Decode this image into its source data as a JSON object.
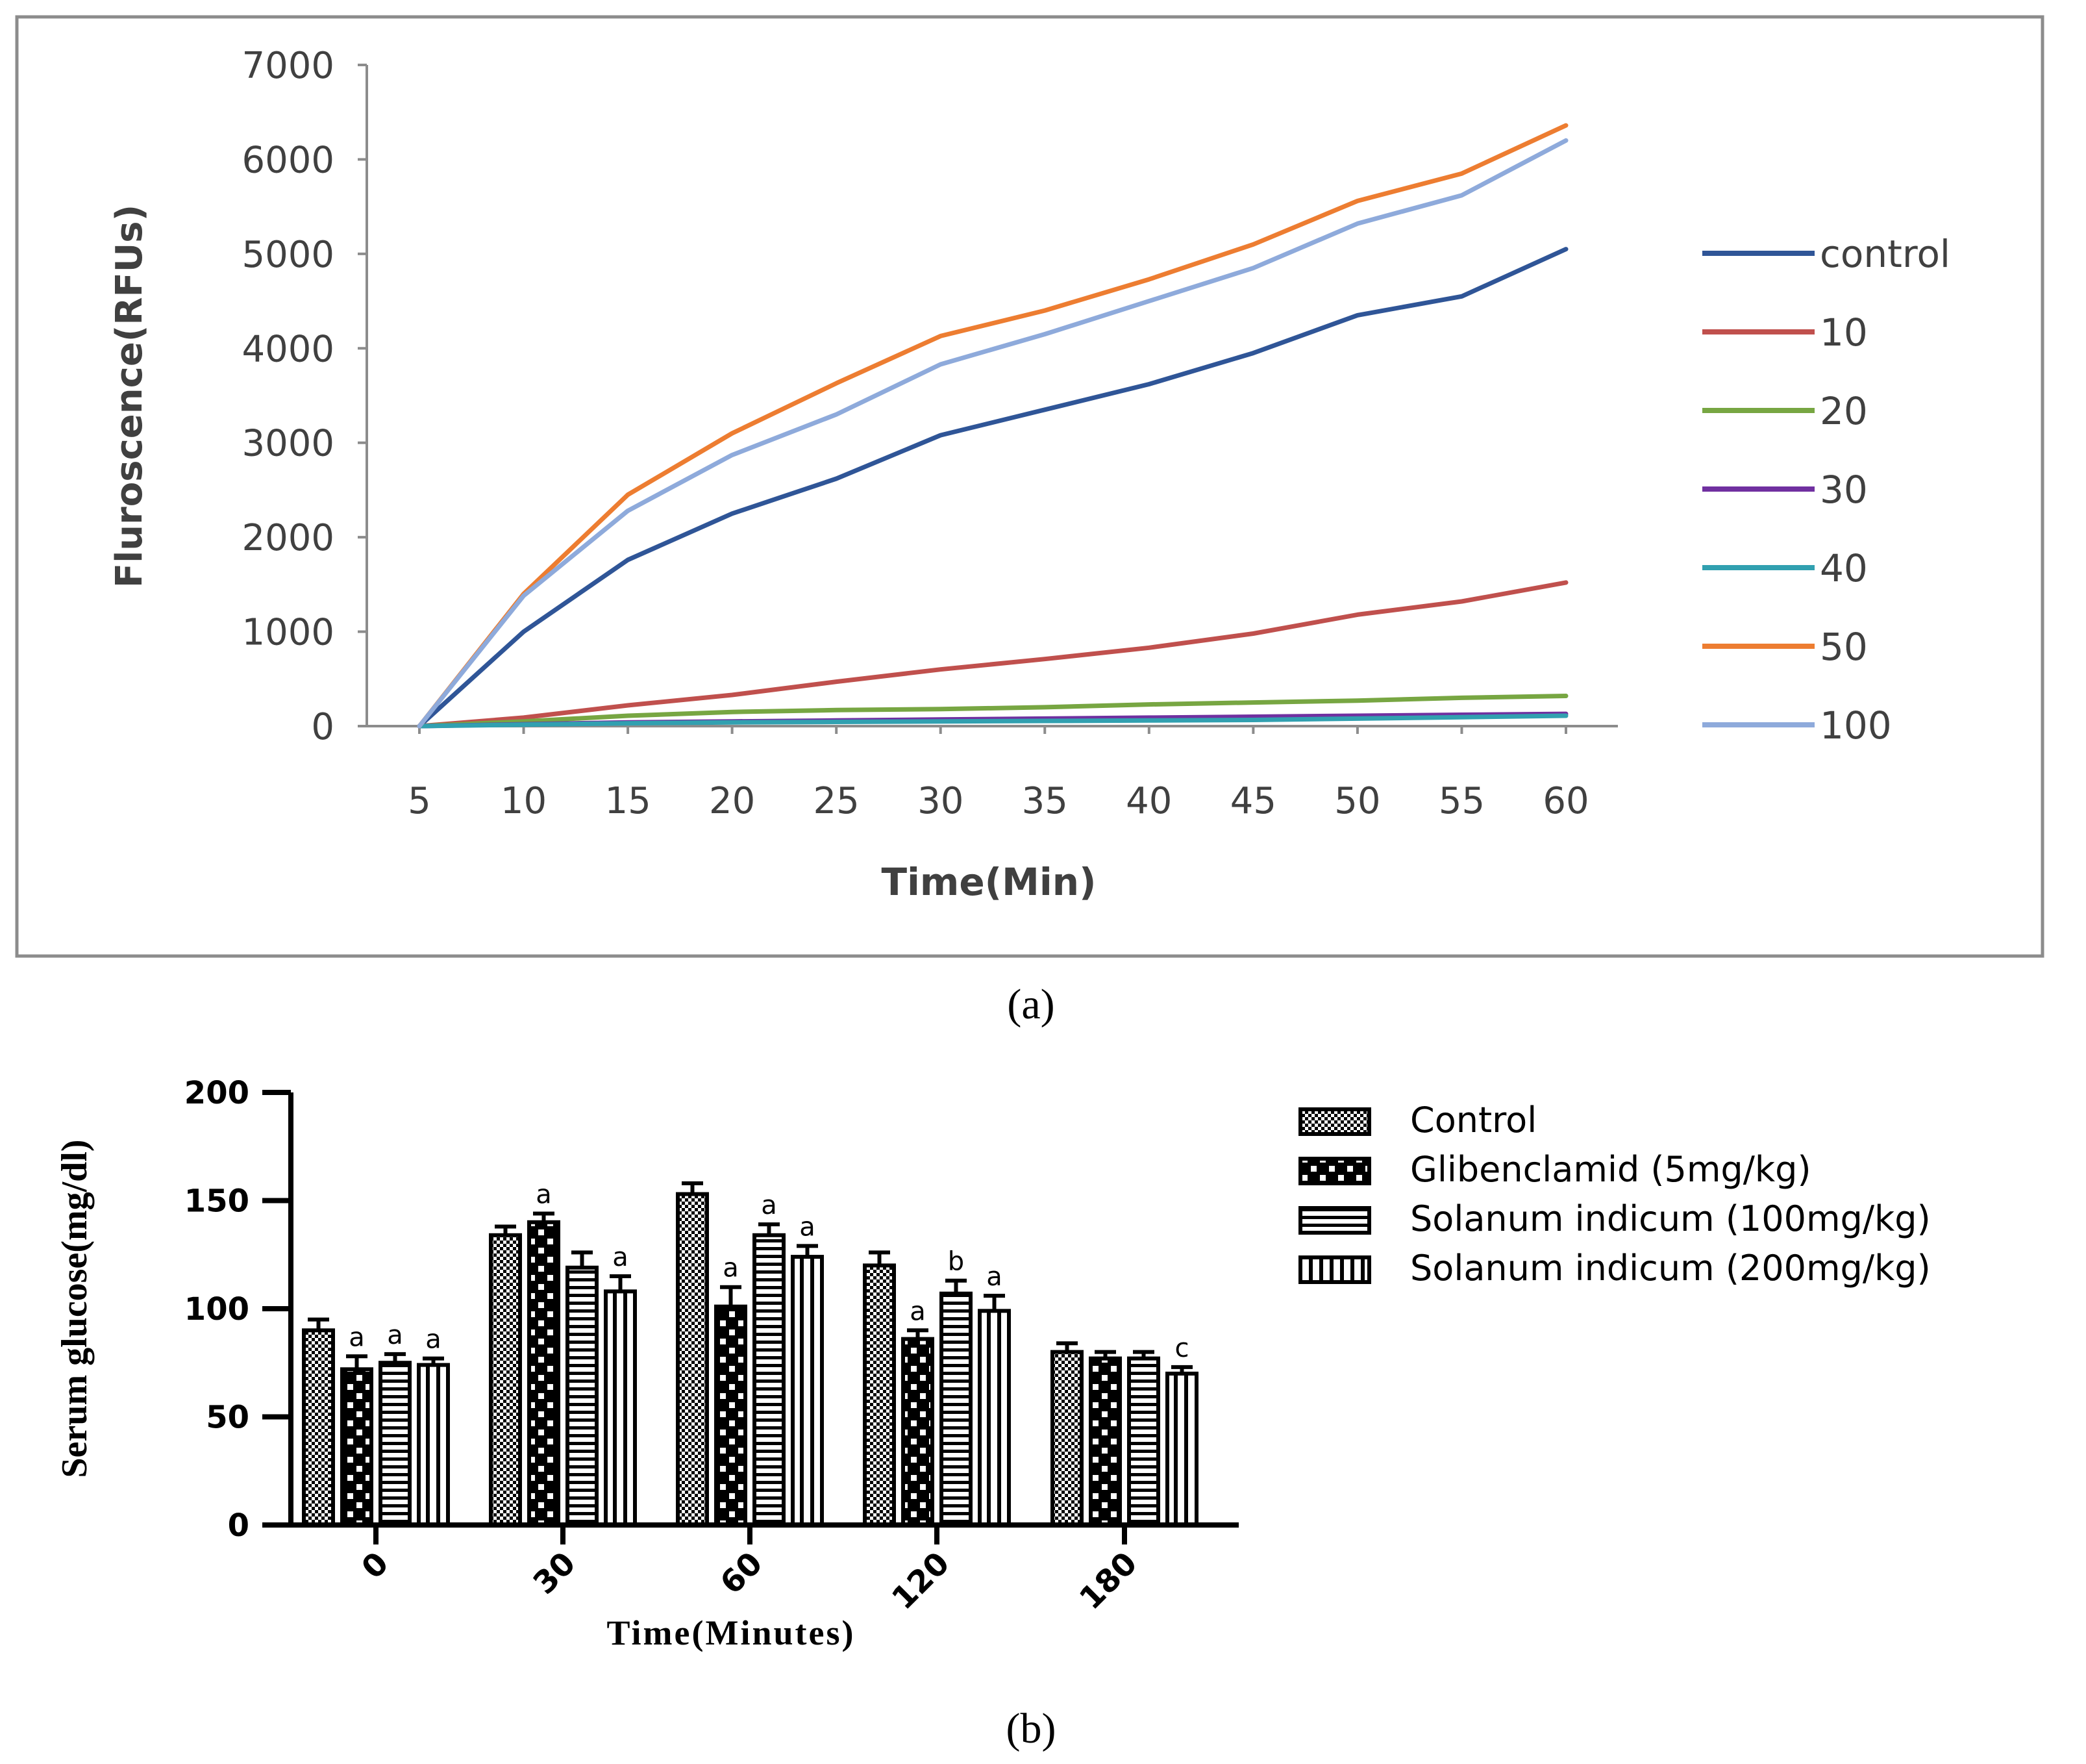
{
  "panel_a_label": "(a)",
  "panel_b_label": "(b)",
  "chart_data": [
    {
      "type": "line",
      "title": "",
      "xlabel": "Time(Min)",
      "ylabel": "Fluroscence(RFUs)",
      "x": [
        5,
        10,
        15,
        20,
        25,
        30,
        35,
        40,
        45,
        50,
        55,
        60
      ],
      "ylim": [
        0,
        7000
      ],
      "yticks": [
        0,
        1000,
        2000,
        3000,
        4000,
        5000,
        6000,
        7000
      ],
      "legend_position": "right",
      "grid": false,
      "series": [
        {
          "name": "control",
          "color": "#2f5597",
          "values": [
            0,
            1000,
            1760,
            2250,
            2620,
            3080,
            3350,
            3620,
            3950,
            4350,
            4550,
            5050
          ]
        },
        {
          "name": "10",
          "color": "#c0504d",
          "values": [
            0,
            90,
            220,
            330,
            470,
            600,
            710,
            830,
            980,
            1180,
            1320,
            1520
          ]
        },
        {
          "name": "20",
          "color": "#77a642",
          "values": [
            0,
            50,
            110,
            150,
            170,
            180,
            200,
            230,
            250,
            270,
            300,
            320
          ]
        },
        {
          "name": "30",
          "color": "#7030a0",
          "values": [
            0,
            20,
            40,
            50,
            60,
            70,
            80,
            90,
            100,
            110,
            120,
            130
          ]
        },
        {
          "name": "40",
          "color": "#31a0b0",
          "values": [
            0,
            15,
            30,
            40,
            45,
            50,
            55,
            60,
            65,
            80,
            95,
            110
          ]
        },
        {
          "name": "50",
          "color": "#ed7d31",
          "values": [
            0,
            1400,
            2450,
            3100,
            3630,
            4130,
            4400,
            4730,
            5100,
            5560,
            5850,
            6360
          ]
        },
        {
          "name": "100",
          "color": "#8eaadb",
          "values": [
            0,
            1380,
            2280,
            2870,
            3300,
            3830,
            4150,
            4500,
            4850,
            5320,
            5620,
            6200
          ]
        }
      ]
    },
    {
      "type": "bar",
      "title": "",
      "xlabel": "Time(Minutes)",
      "ylabel": "Serum glucose(mg/dl)",
      "categories": [
        "0",
        "30",
        "60",
        "120",
        "180"
      ],
      "ylim": [
        0,
        200
      ],
      "yticks": [
        0,
        50,
        100,
        150,
        200
      ],
      "legend_position": "top-right",
      "grid": false,
      "series": [
        {
          "name": "Control",
          "pattern": "checker",
          "values": [
            90,
            134,
            153,
            120,
            80
          ],
          "errors": [
            5,
            4,
            5,
            6,
            4
          ],
          "labels": [
            "",
            "",
            "",
            "",
            ""
          ]
        },
        {
          "name": "Glibenclamid (5mg/kg)",
          "pattern": "dots",
          "values": [
            72,
            140,
            101,
            86,
            77
          ],
          "errors": [
            6,
            4,
            9,
            4,
            3
          ],
          "labels": [
            "a",
            "a",
            "a",
            "a",
            ""
          ]
        },
        {
          "name": "Solanum indicum (100mg/kg)",
          "pattern": "horizontal",
          "values": [
            75,
            119,
            134,
            107,
            77
          ],
          "errors": [
            4,
            7,
            5,
            6,
            3
          ],
          "labels": [
            "a",
            "",
            "a",
            "b",
            ""
          ]
        },
        {
          "name": "Solanum indicum (200mg/kg)",
          "pattern": "vertical",
          "values": [
            74,
            108,
            124,
            99,
            70
          ],
          "errors": [
            3,
            7,
            5,
            7,
            3
          ],
          "labels": [
            "a",
            "a",
            "a",
            "a",
            "c"
          ]
        }
      ]
    }
  ]
}
